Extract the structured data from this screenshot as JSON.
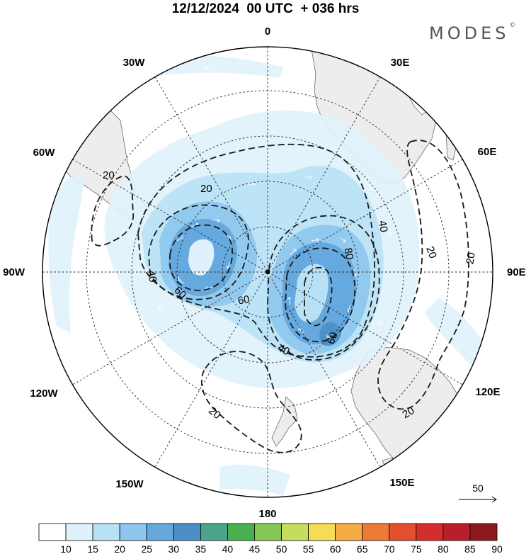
{
  "title": "12/12/2024  00 UTC  + 036 hrs",
  "brand": {
    "name": "MODES",
    "mark": "©"
  },
  "longitude_labels": [
    "0",
    "30E",
    "60E",
    "90E",
    "120E",
    "150E",
    "180",
    "150W",
    "120W",
    "90W",
    "60W",
    "30W"
  ],
  "contour_labels": [
    "20",
    "20",
    "20",
    "20",
    "20",
    "20",
    "40",
    "40",
    "40",
    "60",
    "60",
    "60",
    "80"
  ],
  "reference_vector": {
    "label": "50",
    "icon": "arrow-right-icon"
  },
  "colorbar": {
    "ticks": [
      "10",
      "15",
      "20",
      "25",
      "30",
      "35",
      "40",
      "45",
      "50",
      "55",
      "60",
      "65",
      "70",
      "75",
      "80",
      "85",
      "90"
    ],
    "colors": [
      "#ffffff",
      "#dff2fc",
      "#b9e1f6",
      "#8ec7ee",
      "#64a8dd",
      "#4c8fc7",
      "#4aa48c",
      "#48b050",
      "#86c657",
      "#c4de5c",
      "#f6dc54",
      "#f5ac45",
      "#ed7a37",
      "#e2502f",
      "#d52d2d",
      "#b81f29",
      "#8c1a1d"
    ]
  }
}
